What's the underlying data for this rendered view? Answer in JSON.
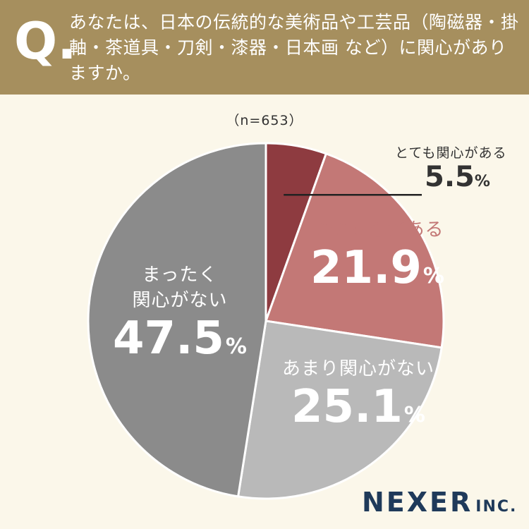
{
  "header": {
    "q_mark": "Q.",
    "question": "あなたは、日本の伝統的な美術品や工芸品（陶磁器・掛軸・茶道具・刀剣・漆器・日本画 など）に関心がありますか。"
  },
  "sample": "（n=653）",
  "chart_data": {
    "type": "pie",
    "title": "",
    "unit": "%",
    "slices": [
      {
        "label": "とても関心がある",
        "value": 5.5,
        "color": "#8e3b40"
      },
      {
        "label": "やや関心がある",
        "value": 21.9,
        "color": "#c37876"
      },
      {
        "label": "あまり関心がない",
        "value": 25.1,
        "color": "#b9b9b9"
      },
      {
        "label": "まったく関心がない",
        "value": 47.5,
        "color": "#8b8b8b"
      }
    ],
    "start_angle_deg": 0,
    "direction": "clockwise"
  },
  "labels": {
    "very": {
      "name": "とても関心がある",
      "value": "5.5",
      "pct": "%"
    },
    "somewhat": {
      "name": "やや関心がある",
      "value": "21.9",
      "pct": "%"
    },
    "not_much": {
      "name": "あまり関心がない",
      "value": "25.1",
      "pct": "%"
    },
    "not_at_all": {
      "name_line1": "まったく",
      "name_line2": "関心がない",
      "value": "47.5",
      "pct": "%"
    }
  },
  "logo": {
    "name": "NEXER",
    "suffix": "INC."
  },
  "colors": {
    "header": "#a68f5e",
    "background": "#fbf7ea",
    "callout_name_somewhat": "#c37876"
  }
}
